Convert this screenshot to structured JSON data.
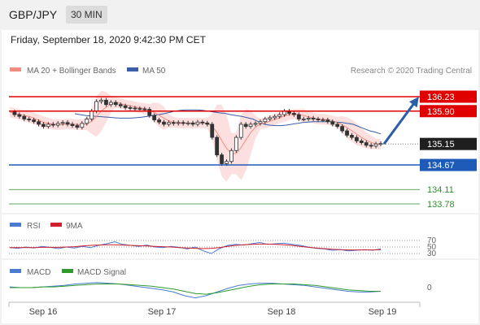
{
  "header": {
    "pair": "GBP/JPY",
    "timeframe": "30 MIN",
    "datetime": "Friday, September 18, 2020 9:42:30 PM CET"
  },
  "chart_data": [
    {
      "type": "line",
      "title": "",
      "legend": [
        {
          "name": "MA 20 + Bollinger Bands",
          "color": "#f28b82"
        },
        {
          "name": "MA 50",
          "color": "#3a5fa8"
        }
      ],
      "copyright": "Research © 2020 Trading Central",
      "x_ticks": [
        "Sep 16",
        "Sep 17",
        "Sep 18",
        "Sep 19"
      ],
      "current_price": "135.15",
      "levels": [
        {
          "label": "136.23",
          "value": 136.23,
          "color": "#e00000",
          "kind": "target"
        },
        {
          "label": "135.90",
          "value": 135.9,
          "color": "#e00000",
          "kind": "resistance"
        },
        {
          "label": "134.67",
          "value": 134.67,
          "color": "#1e5bb8",
          "kind": "support"
        },
        {
          "label": "134.11",
          "value": 134.11,
          "color": "#2e8b2e",
          "kind": "support"
        },
        {
          "label": "133.78",
          "value": 133.78,
          "color": "#2e8b2e",
          "kind": "support"
        }
      ],
      "price_series": [
        135.88,
        135.82,
        135.78,
        135.72,
        135.7,
        135.66,
        135.6,
        135.55,
        135.6,
        135.58,
        135.62,
        135.64,
        135.6,
        135.57,
        135.53,
        135.62,
        135.72,
        135.9,
        136.12,
        136.15,
        136.05,
        136.1,
        136.05,
        136.02,
        135.98,
        135.97,
        135.96,
        135.95,
        135.94,
        135.8,
        135.7,
        135.65,
        135.6,
        135.64,
        135.62,
        135.64,
        135.62,
        135.63,
        135.6,
        135.65,
        135.63,
        135.6,
        135.3,
        134.9,
        134.7,
        134.75,
        135.0,
        135.3,
        135.6,
        135.55,
        135.6,
        135.62,
        135.66,
        135.72,
        135.75,
        135.78,
        135.82,
        135.9,
        135.85,
        135.82,
        135.72,
        135.72,
        135.74,
        135.72,
        135.7,
        135.7,
        135.66,
        135.6,
        135.55,
        135.45,
        135.35,
        135.3,
        135.22,
        135.18,
        135.12,
        135.1,
        135.15,
        135.16
      ],
      "ma50_series": [
        135.84,
        135.82,
        135.8,
        135.79,
        135.78,
        135.77,
        135.76,
        135.75,
        135.74,
        135.74,
        135.74,
        135.75,
        135.76,
        135.78,
        135.8,
        135.82,
        135.84,
        135.87,
        135.9,
        135.92,
        135.93,
        135.93,
        135.93,
        135.92,
        135.9,
        135.88,
        135.86,
        135.85,
        135.82,
        135.8,
        135.78,
        135.75,
        135.72,
        135.66,
        135.6,
        135.58,
        135.57,
        135.57,
        135.58,
        135.6,
        135.62,
        135.64,
        135.65,
        135.66,
        135.66,
        135.66,
        135.66,
        135.65,
        135.64,
        135.62,
        135.6,
        135.55,
        135.5,
        135.45,
        135.42,
        135.38
      ],
      "projection": {
        "from": 135.15,
        "to": 136.23
      }
    },
    {
      "type": "line",
      "title": "",
      "legend": [
        {
          "name": "RSI",
          "color": "#4a7bd0"
        },
        {
          "name": "9MA",
          "color": "#d01f2e"
        }
      ],
      "y_ticks": [
        "70",
        "50",
        "30"
      ],
      "rsi_series": [
        48,
        46,
        50,
        47,
        52,
        49,
        45,
        50,
        47,
        52,
        48,
        55,
        60,
        66,
        58,
        55,
        52,
        56,
        50,
        48,
        52,
        49,
        44,
        50,
        38,
        30,
        45,
        55,
        58,
        56,
        60,
        64,
        58,
        60,
        62,
        58,
        55,
        50,
        46,
        44,
        40,
        42,
        38,
        40,
        42,
        40,
        44
      ],
      "ma9_series": [
        48,
        48,
        48,
        48,
        49,
        49,
        49,
        50,
        51,
        53,
        55,
        56,
        57,
        57,
        56,
        55,
        54,
        53,
        52,
        51,
        50,
        48,
        47,
        46,
        45,
        46,
        48,
        52,
        55,
        57,
        58,
        59,
        59,
        58,
        57,
        55,
        52,
        49,
        47,
        45,
        43,
        42,
        41,
        41,
        41,
        41,
        42
      ]
    },
    {
      "type": "line",
      "title": "",
      "legend": [
        {
          "name": "MACD",
          "color": "#4a7bd0"
        },
        {
          "name": "MACD Signal",
          "color": "#2e9a2e"
        }
      ],
      "y_ticks": [
        "0"
      ],
      "macd_series": [
        0.01,
        0.0,
        0.0,
        0.01,
        0.02,
        0.03,
        0.05,
        0.06,
        0.07,
        0.06,
        0.05,
        0.03,
        0.01,
        -0.01,
        -0.03,
        -0.06,
        -0.11,
        -0.14,
        -0.11,
        -0.06,
        -0.01,
        0.03,
        0.05,
        0.06,
        0.06,
        0.05,
        0.04,
        0.03,
        0.01,
        -0.01,
        -0.03,
        -0.05,
        -0.06,
        -0.06,
        -0.05
      ],
      "signal_series": [
        0.0,
        0.0,
        0.0,
        0.01,
        0.01,
        0.02,
        0.03,
        0.04,
        0.05,
        0.05,
        0.05,
        0.04,
        0.03,
        0.02,
        0.0,
        -0.02,
        -0.05,
        -0.08,
        -0.09,
        -0.07,
        -0.04,
        -0.01,
        0.02,
        0.04,
        0.05,
        0.05,
        0.05,
        0.04,
        0.03,
        0.01,
        -0.01,
        -0.03,
        -0.04,
        -0.05,
        -0.05
      ]
    }
  ]
}
